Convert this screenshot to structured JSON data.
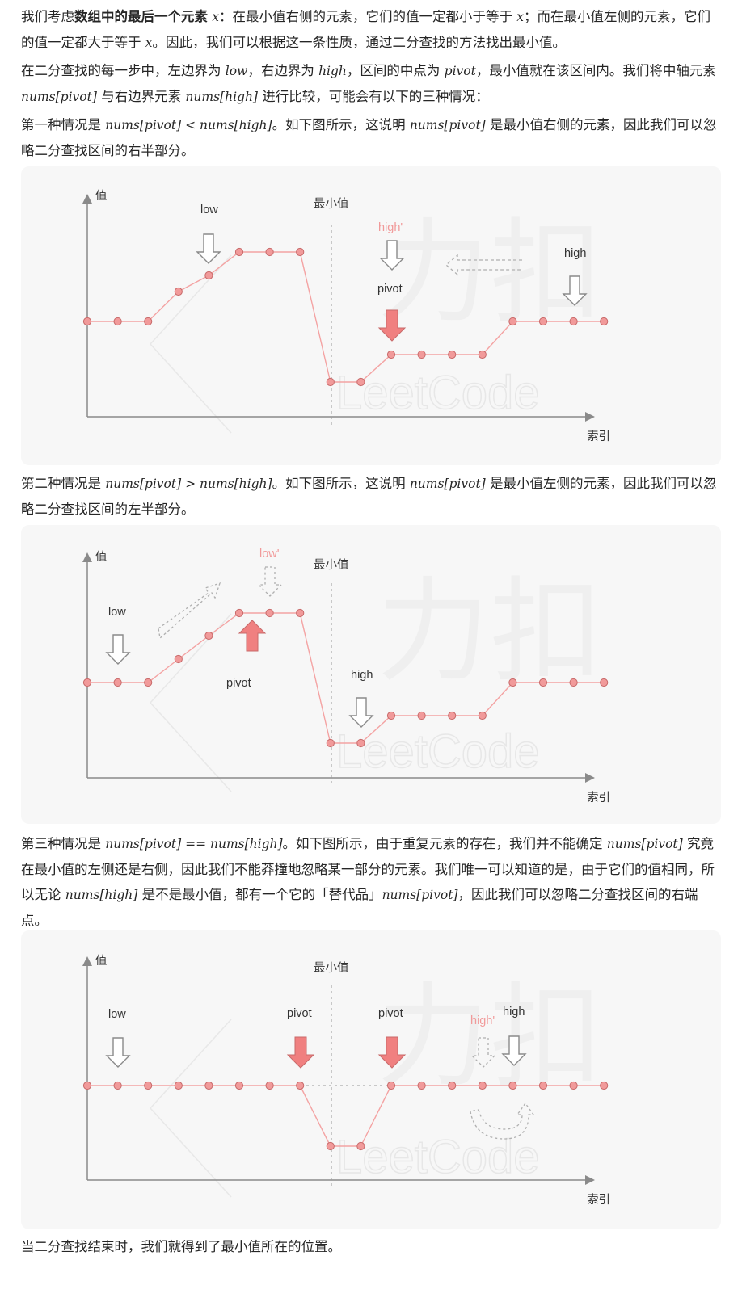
{
  "paragraphs": {
    "p1": {
      "a": "我们考虑",
      "bold": "数组中的最后一个元素",
      "x1": "x",
      "b": "：在最小值右侧的元素，它们的值一定都小于等于",
      "x2": "x",
      "c": "；而在最小值左侧的元素，它们的值一定都大于等于",
      "x3": "x",
      "d": "。因此，我们可以根据这一条性质，通过二分查找的方法找出最小值。"
    },
    "p2": {
      "a": "在二分查找的每一步中，左边界为",
      "low": "low",
      "b": "，右边界为",
      "high": "high",
      "c": "，区间的中点为",
      "pivot": "pivot",
      "d": "，最小值就在该区间内。我们将中轴元素",
      "m1": "nums[pivot]",
      "e": "与右边界元素",
      "m2": "nums[high]",
      "f": "进行比较，可能会有以下的三种情况："
    },
    "p3": {
      "a": "第一种情况是",
      "m1": "nums[pivot] < nums[high]",
      "b": "。如下图所示，这说明",
      "m2": "nums[pivot]",
      "c": "是最小值右侧的元素，因此我们可以忽略二分查找区间的右半部分。"
    },
    "p4": {
      "a": "第二种情况是",
      "m1": "nums[pivot] > nums[high]",
      "b": "。如下图所示，这说明",
      "m2": "nums[pivot]",
      "c": "是最小值左侧的元素，因此我们可以忽略二分查找区间的左半部分。"
    },
    "p5": {
      "a": "第三种情况是",
      "m1": "nums[pivot] == nums[high]",
      "b": "。如下图所示，由于重复元素的存在，我们并不能确定",
      "m2": "nums[pivot]",
      "c": "究竟在最小值的左侧还是右侧，因此我们不能莽撞地忽略某一部分的元素。我们唯一可以知道的是，由于它们的值相同，所以无论",
      "m3": "nums[high]",
      "d": "是不是最小值，都有一个它的「替代品」",
      "m4": "nums[pivot]",
      "e": "，因此我们可以忽略二分查找区间的右端点。"
    },
    "p6": {
      "a": "当二分查找结束时，我们就得到了最小值所在的位置。"
    }
  },
  "figures": [
    {
      "ylabel": "值",
      "xlabel": "索引",
      "min_label": "最小值",
      "watermark": "LeetCode",
      "watermark_cjk": "力扣",
      "labels": {
        "low": "low",
        "high": "high",
        "high_prime": "high'",
        "pivot": "pivot"
      },
      "chart_data": {
        "type": "line",
        "x": [
          0,
          1,
          2,
          3,
          4,
          5,
          6,
          7,
          8,
          9,
          10,
          11,
          12,
          13,
          14,
          15,
          16,
          17
        ],
        "y": [
          2,
          2,
          2,
          3,
          4,
          5,
          5,
          5,
          0,
          0,
          1,
          1,
          1,
          1,
          2,
          2,
          2,
          2
        ]
      }
    },
    {
      "ylabel": "值",
      "xlabel": "索引",
      "min_label": "最小值",
      "watermark": "LeetCode",
      "watermark_cjk": "力扣",
      "labels": {
        "low": "low",
        "low_prime": "low'",
        "high": "high",
        "pivot": "pivot"
      },
      "chart_data": {
        "type": "line",
        "x": [
          0,
          1,
          2,
          3,
          4,
          5,
          6,
          7,
          8,
          9,
          10,
          11,
          12,
          13,
          14,
          15,
          16,
          17
        ],
        "y": [
          2,
          2,
          2,
          3,
          4,
          5,
          5,
          5,
          0,
          0,
          1,
          1,
          1,
          1,
          2,
          2,
          2,
          2
        ]
      }
    },
    {
      "ylabel": "值",
      "xlabel": "索引",
      "min_label": "最小值",
      "watermark": "LeetCode",
      "watermark_cjk": "力扣",
      "labels": {
        "low": "low",
        "pivot_left": "pivot",
        "pivot_right": "pivot",
        "high_prime": "high'",
        "high": "high"
      },
      "chart_data": {
        "type": "line",
        "x": [
          0,
          1,
          2,
          3,
          4,
          5,
          6,
          7,
          8,
          9,
          10,
          11,
          12,
          13,
          14,
          15,
          16,
          17
        ],
        "y": [
          1,
          1,
          1,
          1,
          1,
          1,
          1,
          1,
          0,
          0,
          1,
          1,
          1,
          1,
          1,
          1,
          1,
          1
        ]
      }
    }
  ],
  "colors": {
    "line": "#f4a3a3",
    "point_fill": "#f19a9a",
    "point_stroke": "#c86a6a",
    "arrow_red": "#f08080",
    "text_red": "#f19a9a",
    "axis": "#8a8a8a"
  }
}
